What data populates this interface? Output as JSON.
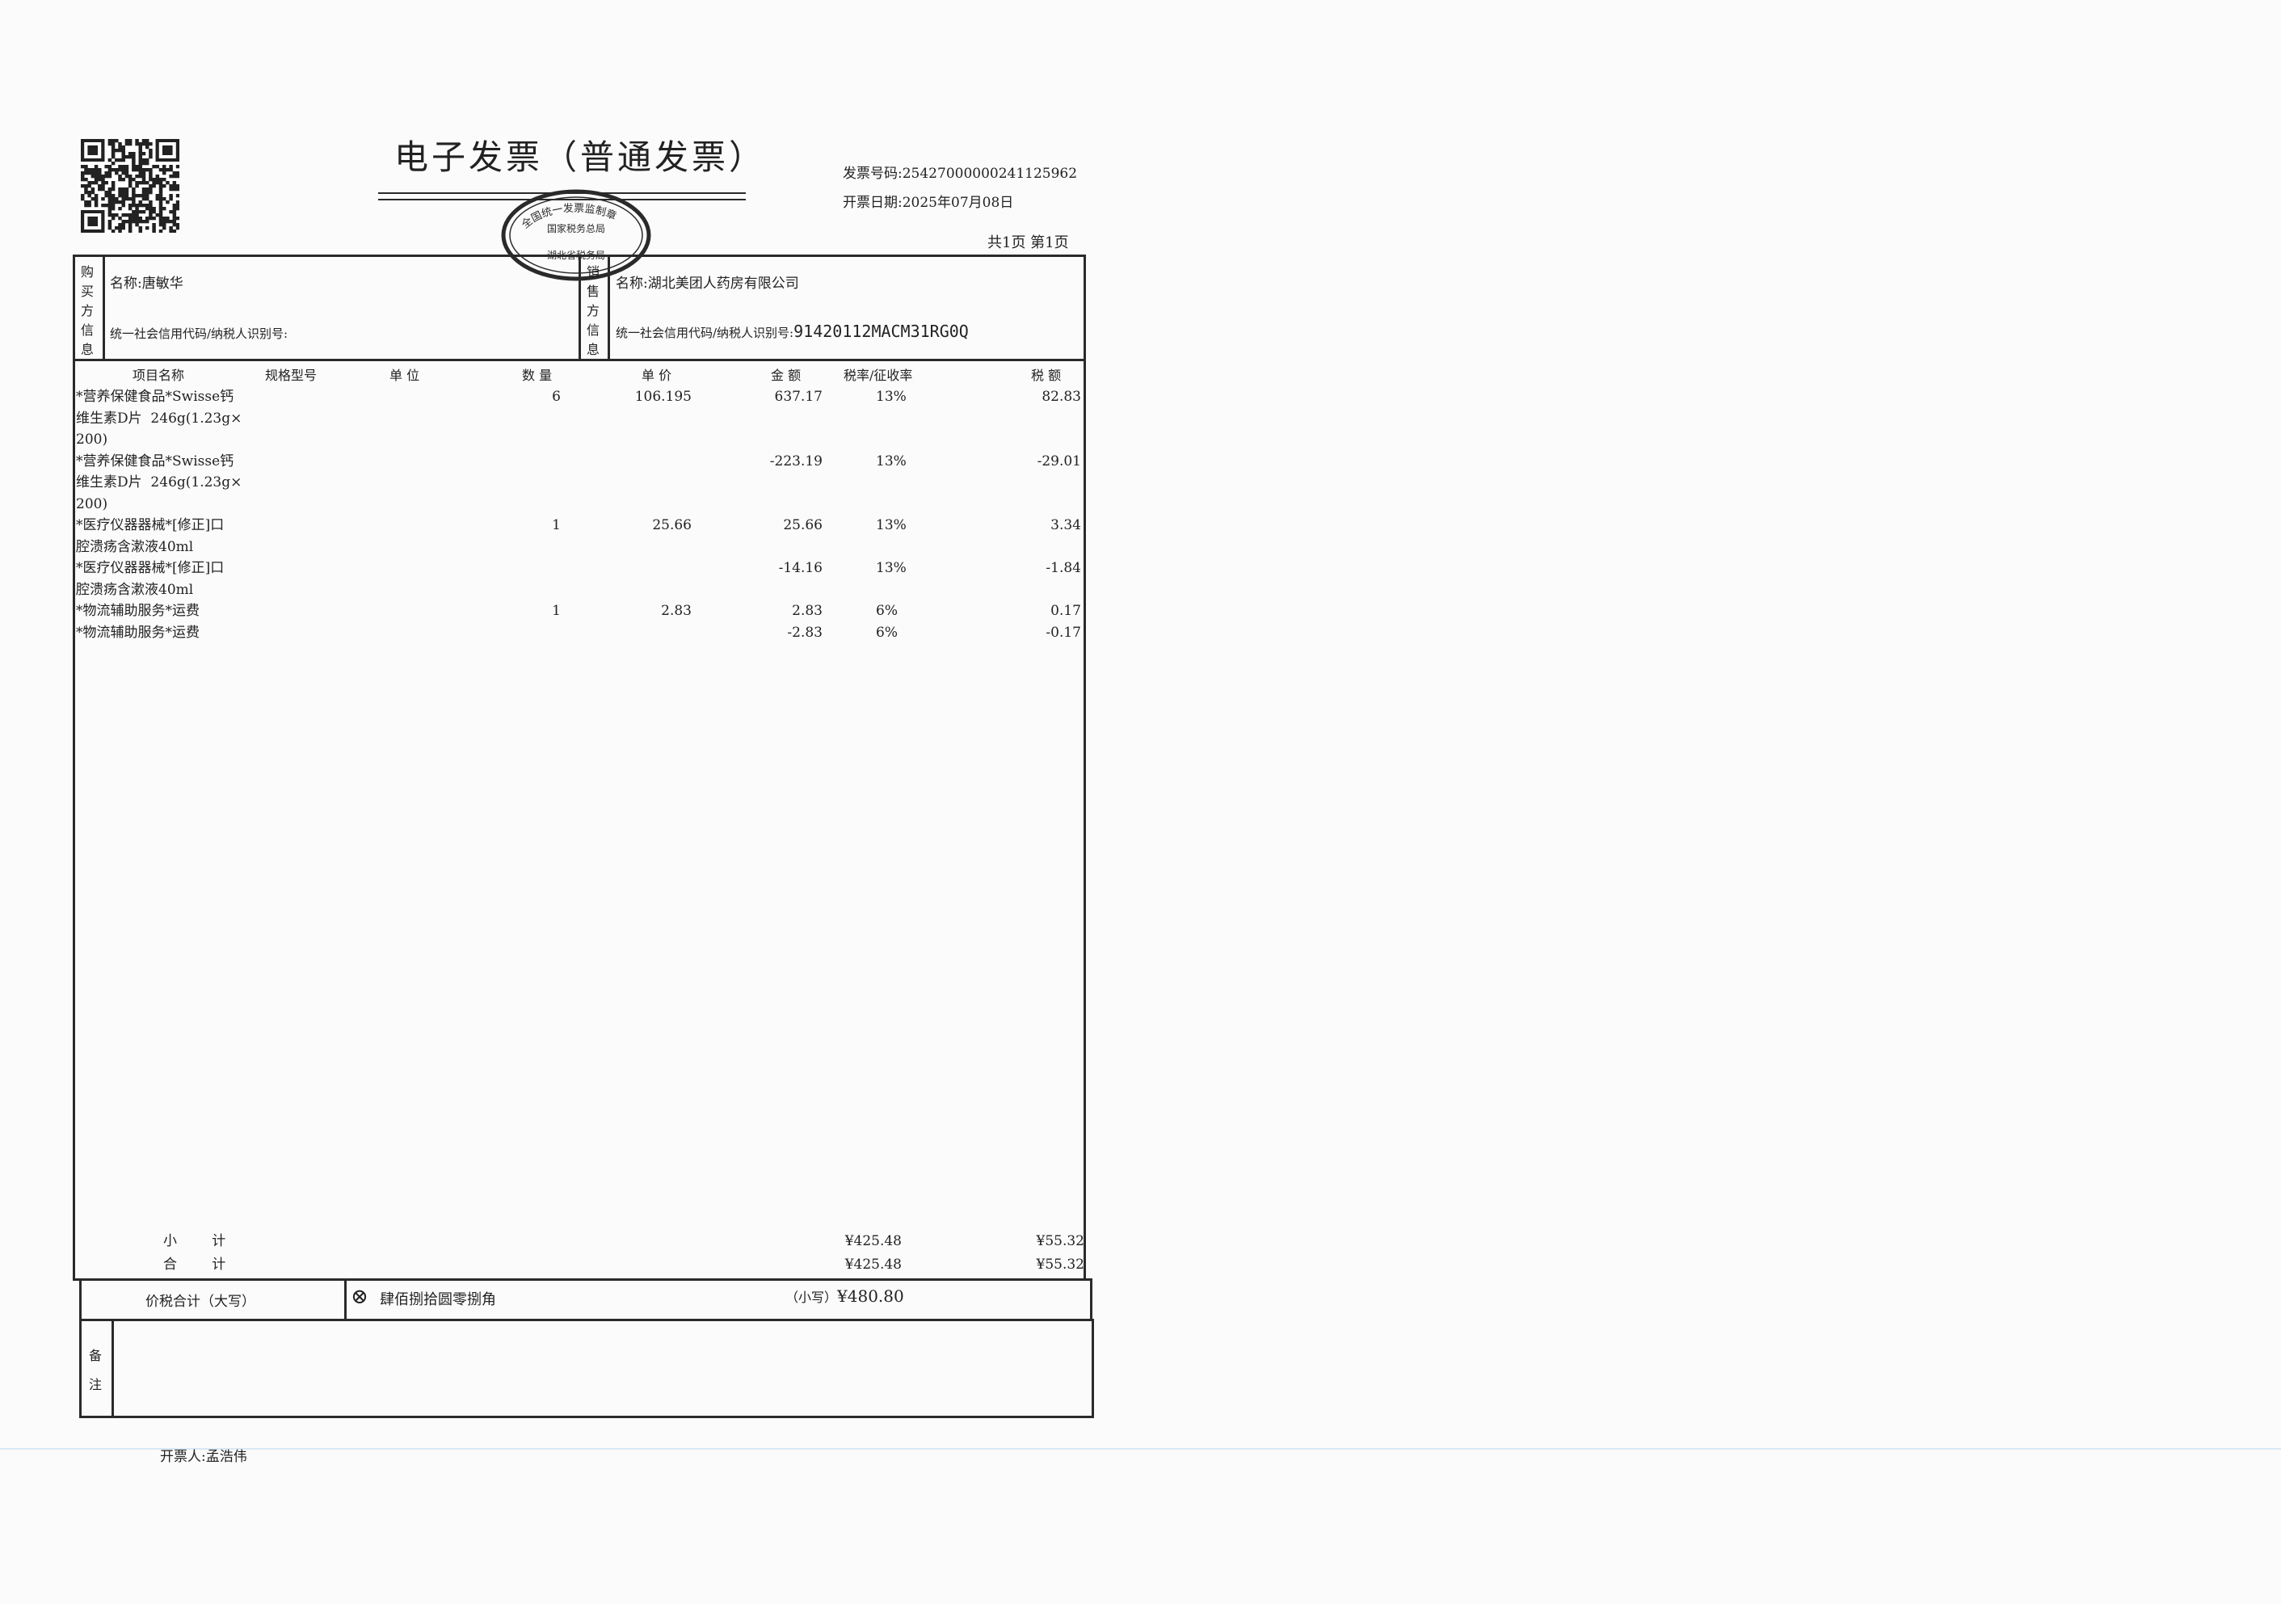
{
  "header": {
    "title": "电子发票（普通发票）",
    "invoice_number_label": "发票号码:",
    "invoice_number": "25427000000241125962",
    "issue_date_label": "开票日期:",
    "issue_date": "2025年07月08日",
    "page_info": "共1页 第1页"
  },
  "stamp": {
    "top_text": "全国统一发票监制章",
    "middle_text": "国家税务总局",
    "bottom_text": "湖北省税务局",
    "color": "#2a2a2a"
  },
  "buyer": {
    "side_label": "购买方信息",
    "name_label": "名称:",
    "name": "唐敏华",
    "tax_id_label": "统一社会信用代码/纳税人识别号:",
    "tax_id": ""
  },
  "seller": {
    "side_label": "销售方信息",
    "name_label": "名称:",
    "name": "湖北美团人药房有限公司",
    "tax_id_label": "统一社会信用代码/纳税人识别号:",
    "tax_id": "91420112MACM31RG0Q"
  },
  "items": {
    "columns": [
      "项目名称",
      "规格型号",
      "单  位",
      "数  量",
      "单  价",
      "金  额",
      "税率/征收率",
      "税  额"
    ],
    "rows": [
      {
        "name_lines": [
          "*营养保健食品*Swisse钙",
          "维生素D片  246g(1.23g×",
          "200)"
        ],
        "spec": "",
        "unit": "",
        "qty": "6",
        "price": "106.195",
        "amount": "637.17",
        "rate": "13%",
        "tax": "82.83"
      },
      {
        "name_lines": [
          "*营养保健食品*Swisse钙",
          "维生素D片  246g(1.23g×",
          "200)"
        ],
        "spec": "",
        "unit": "",
        "qty": "",
        "price": "",
        "amount": "-223.19",
        "rate": "13%",
        "tax": "-29.01"
      },
      {
        "name_lines": [
          "*医疗仪器器械*[修正]口",
          "腔溃疡含漱液40ml"
        ],
        "spec": "",
        "unit": "",
        "qty": "1",
        "price": "25.66",
        "amount": "25.66",
        "rate": "13%",
        "tax": "3.34"
      },
      {
        "name_lines": [
          "*医疗仪器器械*[修正]口",
          "腔溃疡含漱液40ml"
        ],
        "spec": "",
        "unit": "",
        "qty": "",
        "price": "",
        "amount": "-14.16",
        "rate": "13%",
        "tax": "-1.84"
      },
      {
        "name_lines": [
          "*物流辅助服务*运费"
        ],
        "spec": "",
        "unit": "",
        "qty": "1",
        "price": "2.83",
        "amount": "2.83",
        "rate": "6%",
        "tax": "0.17"
      },
      {
        "name_lines": [
          "*物流辅助服务*运费"
        ],
        "spec": "",
        "unit": "",
        "qty": "",
        "price": "",
        "amount": "-2.83",
        "rate": "6%",
        "tax": "-0.17"
      }
    ]
  },
  "totals": {
    "subtotal_label": "小        计",
    "subtotal_amount": "¥425.48",
    "subtotal_tax": "¥55.32",
    "total_label": "合        计",
    "total_amount": "¥425.48",
    "total_tax": "¥55.32",
    "grand_label": "价税合计（大写）",
    "grand_words": "肆佰捌拾圆零捌角",
    "grand_small_label": "（小写）",
    "grand_small": "¥480.80"
  },
  "remarks": {
    "label": "备注",
    "content": ""
  },
  "footer": {
    "issuer_label": "开票人:",
    "issuer": "孟浩伟"
  }
}
